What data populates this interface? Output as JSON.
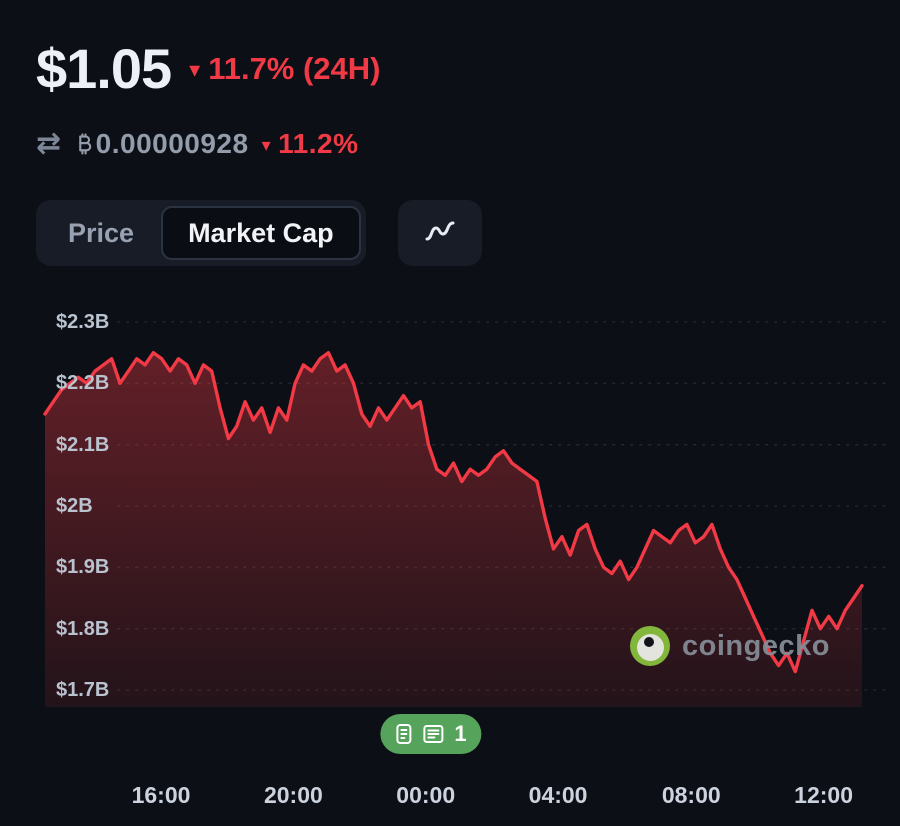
{
  "header": {
    "price": "$1.05",
    "change_24h": "11.7% (24H)",
    "btc_symbol": "₿",
    "btc_amount": "0.00000928",
    "btc_change": "11.2%"
  },
  "icons": {
    "down_arrow": "▾",
    "swap": "⇄"
  },
  "toggle": {
    "price_label": "Price",
    "market_cap_label": "Market Cap"
  },
  "watermark": {
    "text": "coingecko"
  },
  "events_badge": {
    "count": "1"
  },
  "colors": {
    "background": "#0c0f15",
    "negative_red": "#f13a45",
    "badge_green": "#56a45c",
    "gecko_green": "#8bc53f"
  },
  "chart_data": {
    "type": "area",
    "title": "",
    "xlabel": "",
    "ylabel": "",
    "ylim": [
      1.7,
      2.3
    ],
    "grid": true,
    "legend": false,
    "x_ticks": [
      {
        "label": "16:00",
        "f": 0.142
      },
      {
        "label": "20:00",
        "f": 0.304
      },
      {
        "label": "00:00",
        "f": 0.466
      },
      {
        "label": "04:00",
        "f": 0.628
      },
      {
        "label": "08:00",
        "f": 0.791
      },
      {
        "label": "12:00",
        "f": 0.953
      }
    ],
    "y_ticks": [
      {
        "label": "$2.3B",
        "value": 2.3
      },
      {
        "label": "$2.2B",
        "value": 2.2
      },
      {
        "label": "$2.1B",
        "value": 2.1
      },
      {
        "label": "$2B",
        "value": 2.0
      },
      {
        "label": "$1.9B",
        "value": 1.9
      },
      {
        "label": "$1.8B",
        "value": 1.8
      },
      {
        "label": "$1.7B",
        "value": 1.7
      }
    ],
    "series": [
      {
        "name": "Market Cap (USD, billions)",
        "values": [
          2.15,
          2.17,
          2.19,
          2.2,
          2.21,
          2.2,
          2.22,
          2.23,
          2.24,
          2.2,
          2.22,
          2.24,
          2.23,
          2.25,
          2.24,
          2.22,
          2.24,
          2.23,
          2.2,
          2.23,
          2.22,
          2.16,
          2.11,
          2.13,
          2.17,
          2.14,
          2.16,
          2.12,
          2.16,
          2.14,
          2.2,
          2.23,
          2.22,
          2.24,
          2.25,
          2.22,
          2.23,
          2.2,
          2.15,
          2.13,
          2.16,
          2.14,
          2.16,
          2.18,
          2.16,
          2.17,
          2.1,
          2.06,
          2.05,
          2.07,
          2.04,
          2.06,
          2.05,
          2.06,
          2.08,
          2.09,
          2.07,
          2.06,
          2.05,
          2.04,
          1.98,
          1.93,
          1.95,
          1.92,
          1.96,
          1.97,
          1.93,
          1.9,
          1.89,
          1.91,
          1.88,
          1.9,
          1.93,
          1.96,
          1.95,
          1.94,
          1.96,
          1.97,
          1.94,
          1.95,
          1.97,
          1.93,
          1.9,
          1.88,
          1.85,
          1.82,
          1.79,
          1.76,
          1.74,
          1.76,
          1.73,
          1.78,
          1.83,
          1.8,
          1.82,
          1.8,
          1.83,
          1.85,
          1.87
        ]
      }
    ]
  }
}
